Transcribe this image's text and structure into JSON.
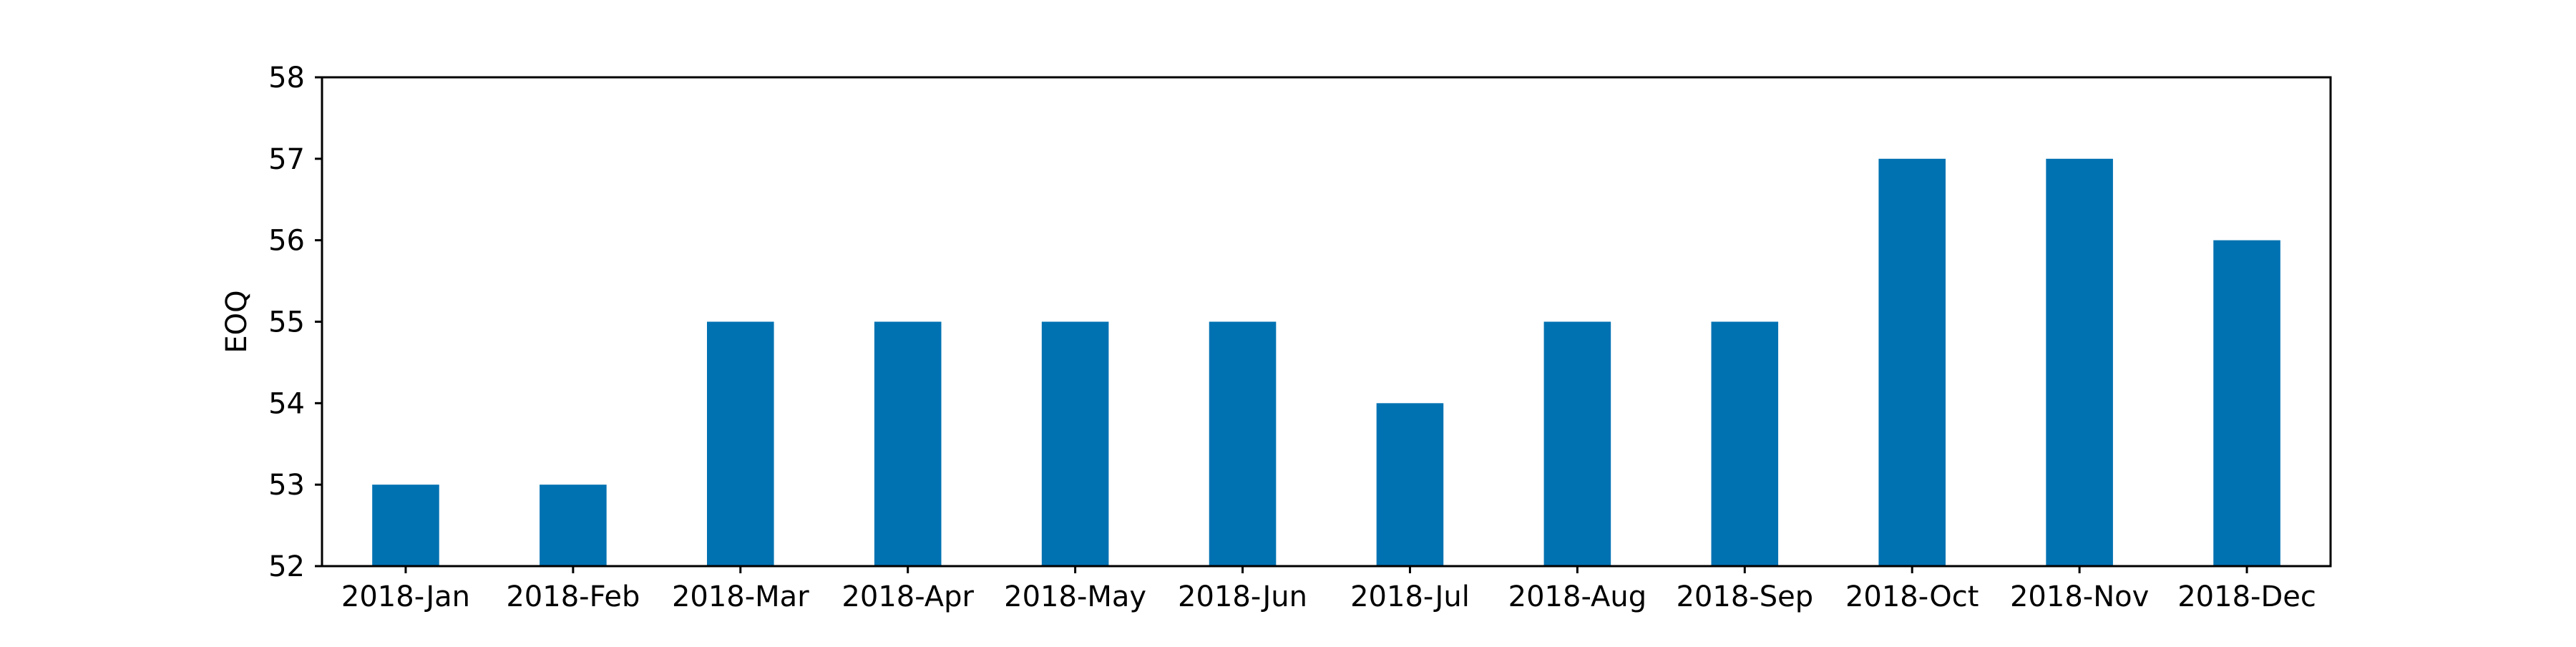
{
  "chart_data": {
    "type": "bar",
    "title": "",
    "xlabel": "",
    "ylabel": "EOQ",
    "categories": [
      "2018-Jan",
      "2018-Feb",
      "2018-Mar",
      "2018-Apr",
      "2018-May",
      "2018-Jun",
      "2018-Jul",
      "2018-Aug",
      "2018-Sep",
      "2018-Oct",
      "2018-Nov",
      "2018-Dec"
    ],
    "values": [
      53,
      53,
      55,
      55,
      55,
      55,
      54,
      55,
      55,
      57,
      57,
      56
    ],
    "ylim": [
      52,
      58
    ],
    "yticks": [
      "52",
      "53",
      "54",
      "55",
      "56",
      "57",
      "58"
    ],
    "grid": false,
    "legend": null,
    "bar_color": "#0072b2"
  }
}
